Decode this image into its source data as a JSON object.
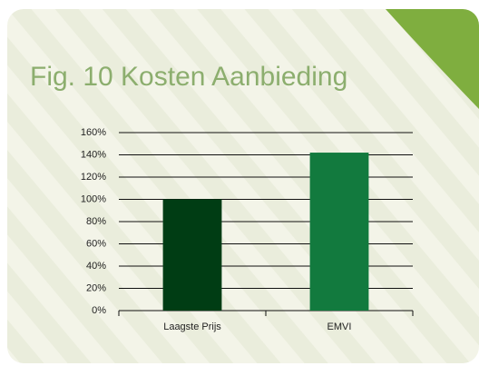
{
  "chart_data": {
    "type": "bar",
    "title": "Fig. 10 Kosten Aanbieding",
    "categories": [
      "Laagste Prijs",
      "EMVI"
    ],
    "values": [
      100,
      142
    ],
    "colors": [
      "#003d14",
      "#127a3e"
    ],
    "ylim": [
      0,
      160
    ],
    "yticks": [
      {
        "value": 0,
        "label": "0%"
      },
      {
        "value": 20,
        "label": "20%"
      },
      {
        "value": 40,
        "label": "40%"
      },
      {
        "value": 60,
        "label": "60%"
      },
      {
        "value": 80,
        "label": "80%"
      },
      {
        "value": 100,
        "label": "100%"
      },
      {
        "value": 120,
        "label": "120%"
      },
      {
        "value": 140,
        "label": "140%"
      },
      {
        "value": 160,
        "label": "160%"
      }
    ],
    "grid": true
  }
}
